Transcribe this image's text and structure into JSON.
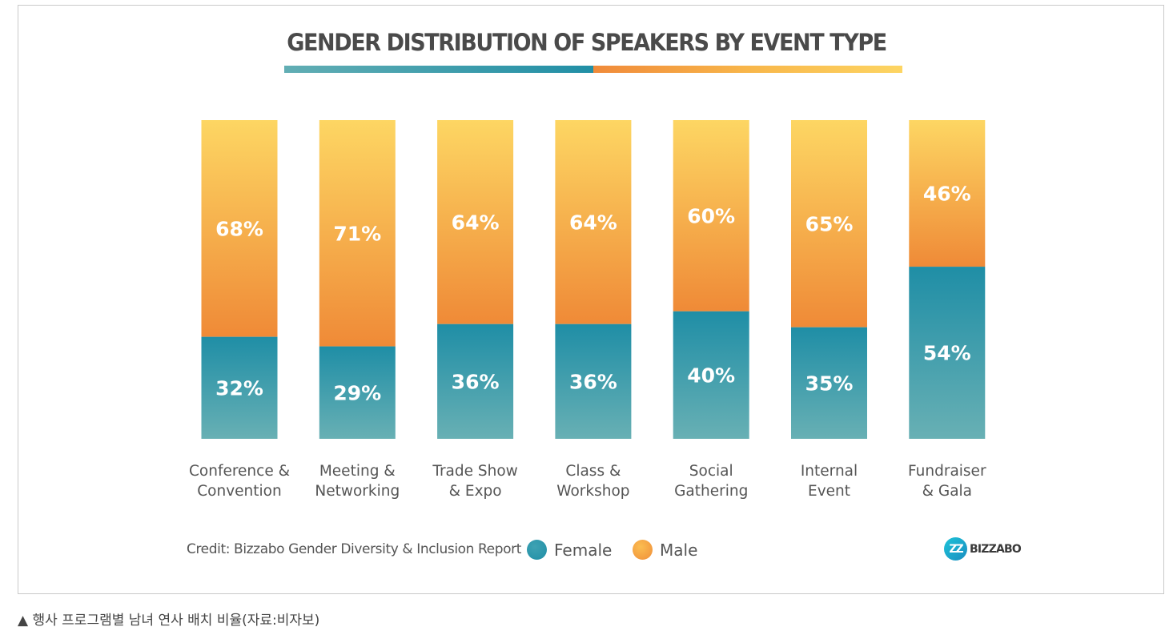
{
  "chart_data": {
    "type": "bar",
    "stacked": true,
    "title": "GENDER DISTRIBUTION OF SPEAKERS BY EVENT TYPE",
    "categories": [
      [
        "Conference &",
        "Convention"
      ],
      [
        "Meeting &",
        "Networking"
      ],
      [
        "Trade Show",
        "& Expo"
      ],
      [
        "Class &",
        "Workshop"
      ],
      [
        "Social",
        "Gathering"
      ],
      [
        "Internal",
        "Event"
      ],
      [
        "Fundraiser",
        "& Gala"
      ]
    ],
    "series": [
      {
        "name": "Female",
        "values": [
          32,
          29,
          36,
          36,
          40,
          35,
          54
        ],
        "labels": [
          "32%",
          "29%",
          "36%",
          "36%",
          "40%",
          "35%",
          "54%"
        ]
      },
      {
        "name": "Male",
        "values": [
          68,
          71,
          64,
          64,
          60,
          65,
          46
        ],
        "labels": [
          "68%",
          "71%",
          "64%",
          "64%",
          "60%",
          "65%",
          "46%"
        ]
      }
    ],
    "ylim": [
      0,
      100
    ],
    "legend_position": "bottom",
    "grid": false
  },
  "colors": {
    "female_top": "#1f8ea6",
    "female_bottom": "#68b0b4",
    "male_top": "#fdd663",
    "male_bottom": "#ef8a37"
  },
  "legend": {
    "female_label": "Female",
    "male_label": "Male"
  },
  "credit": "Credit: Bizzabo Gender Diversity & Inclusion Report",
  "logo": {
    "icon_text": "ZZ",
    "text": "BIZZABO"
  },
  "caption": "▲ 행사 프로그램별 남녀 연사 배치 비율(자료:비자보)"
}
